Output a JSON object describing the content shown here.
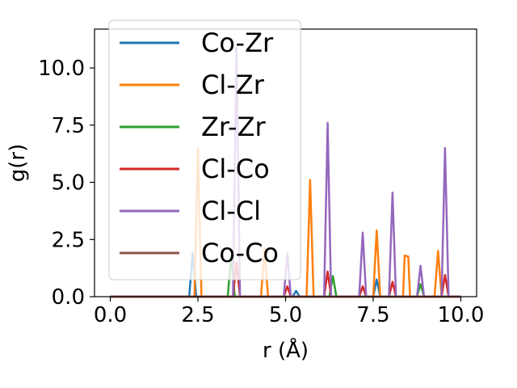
{
  "chart_data": {
    "type": "line",
    "title": "",
    "xlabel": "r (Å)",
    "ylabel": "g(r)",
    "xlim": [
      -0.45,
      10.45
    ],
    "ylim": [
      0,
      11.7
    ],
    "xticks": [
      0.0,
      2.5,
      5.0,
      7.5,
      10.0
    ],
    "xtick_labels": [
      "0.0",
      "2.5",
      "5.0",
      "7.5",
      "10.0"
    ],
    "yticks": [
      0.0,
      2.5,
      5.0,
      7.5,
      10.0
    ],
    "ytick_labels": [
      "0.0",
      "2.5",
      "5.0",
      "7.5",
      "10.0"
    ],
    "grid": false,
    "legend_position": "upper-left",
    "series": [
      {
        "name": "Co-Zr",
        "color": "#1f77b4",
        "points": [
          [
            0,
            0
          ],
          [
            2.25,
            0
          ],
          [
            2.35,
            1.9
          ],
          [
            2.45,
            0
          ],
          [
            5.2,
            0
          ],
          [
            5.3,
            0.25
          ],
          [
            5.4,
            0
          ],
          [
            7.5,
            0
          ],
          [
            7.6,
            0.75
          ],
          [
            7.7,
            0
          ],
          [
            10.0,
            0
          ]
        ]
      },
      {
        "name": "Cl-Zr",
        "color": "#ff7f0e",
        "points": [
          [
            0,
            0
          ],
          [
            2.4,
            0
          ],
          [
            2.5,
            6.5
          ],
          [
            2.6,
            0
          ],
          [
            4.3,
            0
          ],
          [
            4.4,
            2.1
          ],
          [
            4.5,
            0
          ],
          [
            5.6,
            0
          ],
          [
            5.7,
            5.1
          ],
          [
            5.8,
            0
          ],
          [
            7.5,
            0
          ],
          [
            7.6,
            2.9
          ],
          [
            7.7,
            0
          ],
          [
            8.35,
            0
          ],
          [
            8.4,
            1.8
          ],
          [
            8.5,
            1.75
          ],
          [
            8.55,
            0
          ],
          [
            9.25,
            0
          ],
          [
            9.35,
            2.0
          ],
          [
            9.45,
            0
          ],
          [
            10.0,
            0
          ]
        ]
      },
      {
        "name": "Zr-Zr",
        "color": "#2ca02c",
        "points": [
          [
            0,
            0
          ],
          [
            3.35,
            0
          ],
          [
            3.45,
            1.8
          ],
          [
            3.55,
            0
          ],
          [
            6.25,
            0
          ],
          [
            6.35,
            0.9
          ],
          [
            6.45,
            0
          ],
          [
            8.75,
            0
          ],
          [
            8.85,
            0.55
          ],
          [
            8.95,
            0
          ],
          [
            10.0,
            0
          ]
        ]
      },
      {
        "name": "Cl-Co",
        "color": "#d62728",
        "points": [
          [
            0,
            0
          ],
          [
            3.5,
            0
          ],
          [
            3.6,
            1.5
          ],
          [
            3.7,
            0
          ],
          [
            4.95,
            0
          ],
          [
            5.05,
            0.45
          ],
          [
            5.15,
            0
          ],
          [
            6.1,
            0
          ],
          [
            6.2,
            1.1
          ],
          [
            6.3,
            0
          ],
          [
            7.1,
            0
          ],
          [
            7.2,
            0.45
          ],
          [
            7.3,
            0
          ],
          [
            7.95,
            0
          ],
          [
            8.05,
            0.65
          ],
          [
            8.15,
            0
          ],
          [
            9.45,
            0
          ],
          [
            9.55,
            0.95
          ],
          [
            9.65,
            0
          ],
          [
            10.0,
            0
          ]
        ]
      },
      {
        "name": "Cl-Cl",
        "color": "#9467bd",
        "points": [
          [
            0,
            0
          ],
          [
            3.5,
            0
          ],
          [
            3.6,
            10.9
          ],
          [
            3.7,
            0
          ],
          [
            4.95,
            0
          ],
          [
            5.05,
            1.9
          ],
          [
            5.15,
            0
          ],
          [
            6.1,
            0
          ],
          [
            6.2,
            7.6
          ],
          [
            6.3,
            0
          ],
          [
            7.1,
            0
          ],
          [
            7.2,
            2.8
          ],
          [
            7.3,
            0
          ],
          [
            7.95,
            0
          ],
          [
            8.05,
            4.55
          ],
          [
            8.15,
            0
          ],
          [
            8.75,
            0
          ],
          [
            8.85,
            1.35
          ],
          [
            8.95,
            0
          ],
          [
            9.45,
            0
          ],
          [
            9.55,
            6.5
          ],
          [
            9.65,
            0
          ],
          [
            10.0,
            0
          ]
        ]
      },
      {
        "name": "Co-Co",
        "color": "#8c564b",
        "points": [
          [
            0,
            0
          ],
          [
            10.0,
            0
          ]
        ]
      }
    ]
  }
}
